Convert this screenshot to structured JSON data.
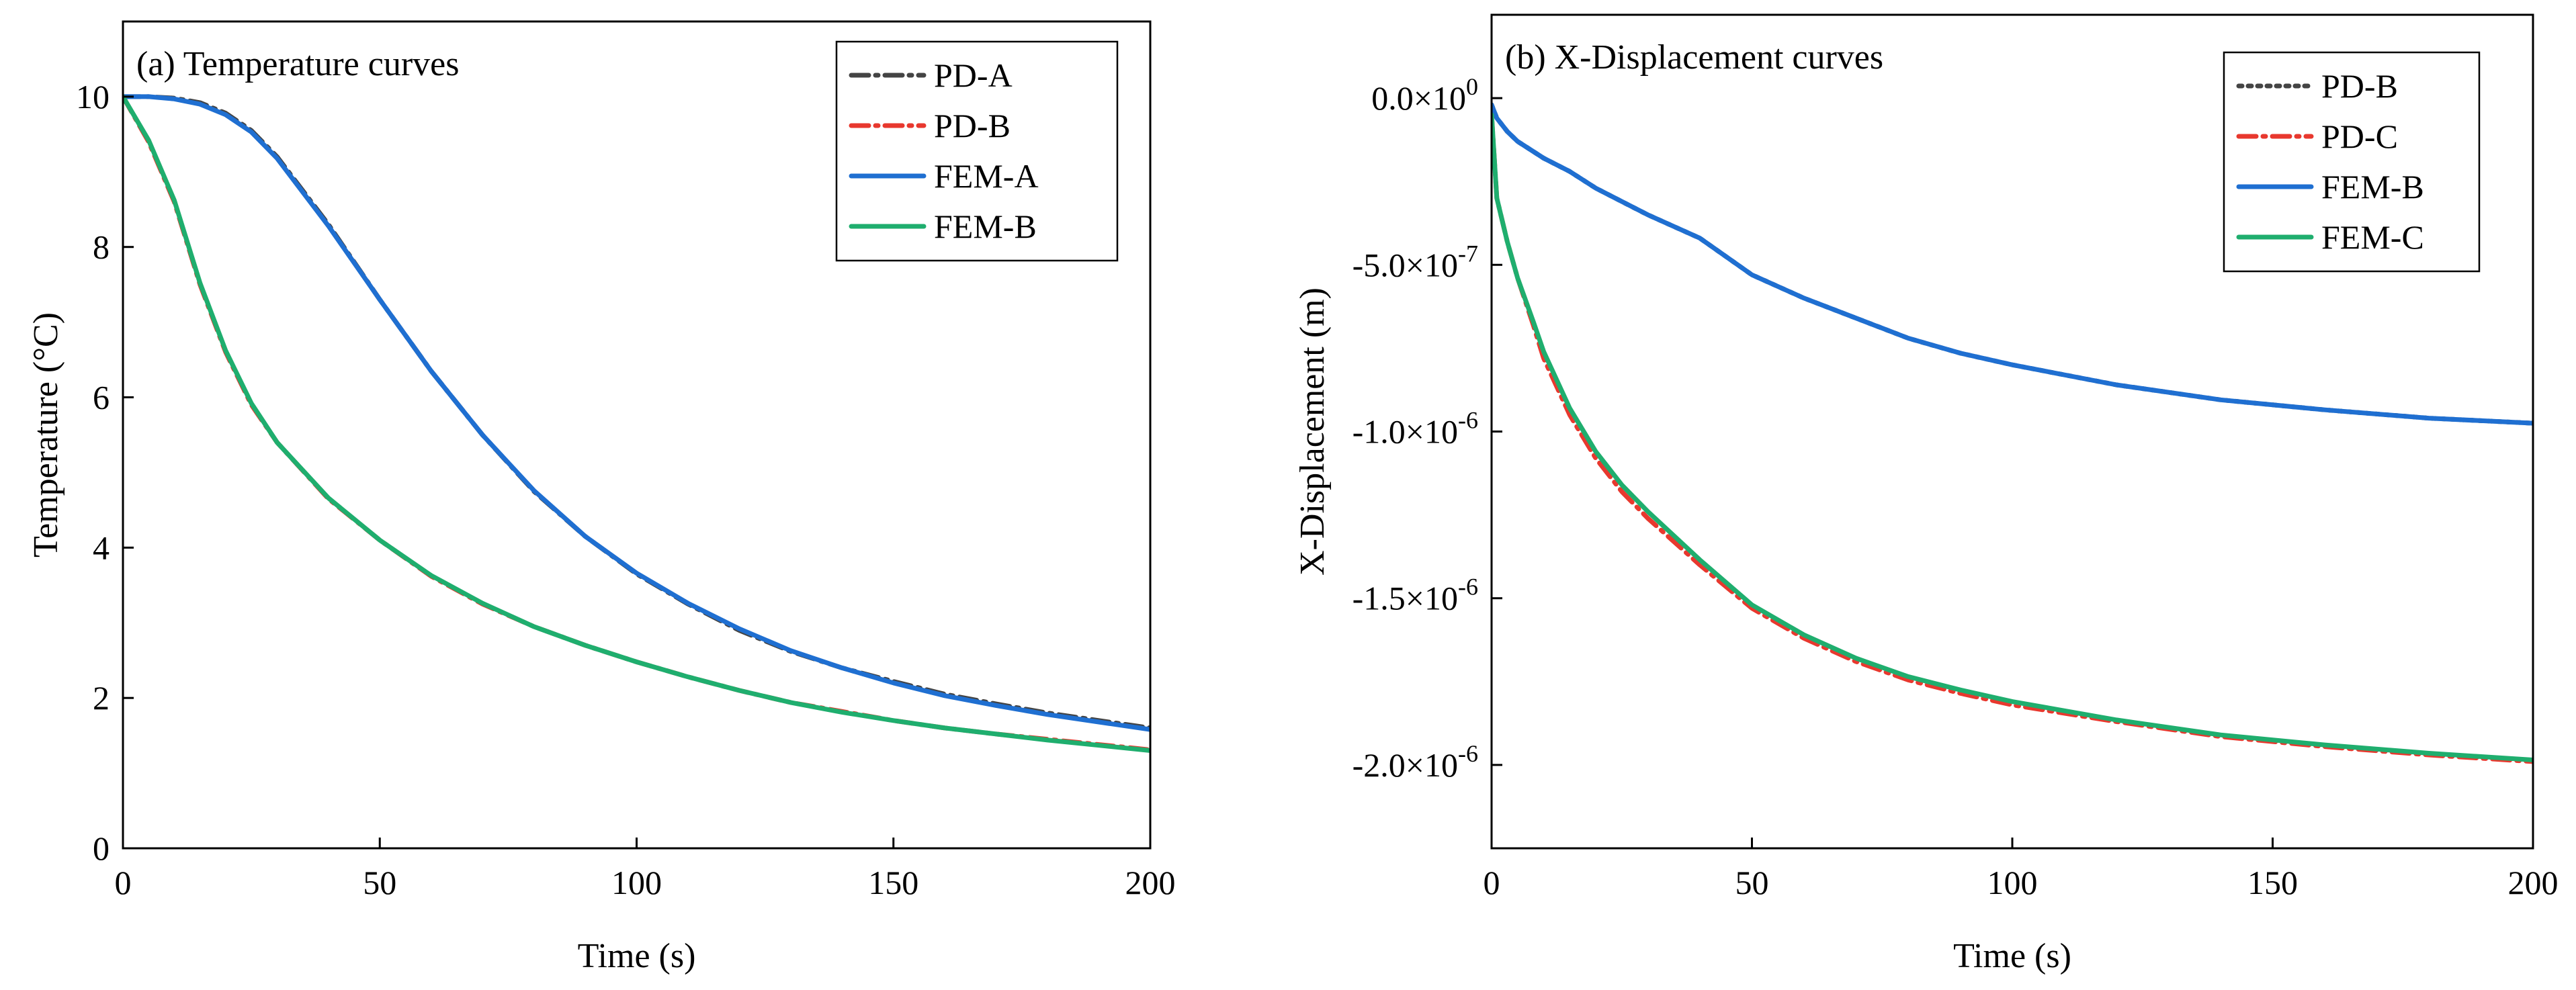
{
  "chart_data": [
    {
      "type": "line",
      "panel_title": "(a) Temperature curves",
      "xlabel": "Time (s)",
      "ylabel": "Temperature (°C)",
      "xlim": [
        0,
        200
      ],
      "ylim": [
        0,
        11
      ],
      "xticks": [
        0,
        50,
        100,
        150,
        200
      ],
      "xtick_labels": [
        "0",
        "50",
        "100",
        "150",
        "200"
      ],
      "yticks": [
        0,
        2,
        4,
        6,
        8,
        10
      ],
      "ytick_labels": [
        "0",
        "2",
        "4",
        "6",
        "8",
        "10"
      ],
      "grid": false,
      "legend_position": "top-right",
      "x": [
        0,
        5,
        10,
        15,
        20,
        25,
        30,
        40,
        50,
        60,
        70,
        80,
        90,
        100,
        110,
        120,
        130,
        140,
        150,
        160,
        170,
        180,
        190,
        200
      ],
      "series": [
        {
          "name": "PD-A",
          "color": "#444444",
          "dash": "dashdot",
          "values": [
            10,
            10,
            9.98,
            9.92,
            9.78,
            9.55,
            9.2,
            8.3,
            7.3,
            6.35,
            5.5,
            4.75,
            4.15,
            3.65,
            3.25,
            2.9,
            2.62,
            2.4,
            2.22,
            2.05,
            1.92,
            1.8,
            1.7,
            1.6
          ]
        },
        {
          "name": "PD-B",
          "color": "#e8382e",
          "dash": "dashdot",
          "values": [
            10,
            9.4,
            8.6,
            7.5,
            6.6,
            5.9,
            5.4,
            4.65,
            4.1,
            3.62,
            3.25,
            2.95,
            2.7,
            2.48,
            2.28,
            2.1,
            1.94,
            1.82,
            1.7,
            1.6,
            1.52,
            1.45,
            1.38,
            1.31
          ]
        },
        {
          "name": "FEM-A",
          "color": "#1f6fd1",
          "dash": "solid",
          "values": [
            10,
            10,
            9.97,
            9.9,
            9.76,
            9.53,
            9.18,
            8.28,
            7.3,
            6.35,
            5.5,
            4.76,
            4.15,
            3.66,
            3.26,
            2.92,
            2.63,
            2.4,
            2.2,
            2.03,
            1.9,
            1.78,
            1.68,
            1.58
          ]
        },
        {
          "name": "FEM-B",
          "color": "#1fae6e",
          "dash": "solid",
          "values": [
            10,
            9.42,
            8.62,
            7.52,
            6.62,
            5.92,
            5.4,
            4.66,
            4.1,
            3.63,
            3.26,
            2.95,
            2.7,
            2.48,
            2.28,
            2.1,
            1.94,
            1.81,
            1.7,
            1.6,
            1.52,
            1.44,
            1.37,
            1.3
          ]
        }
      ]
    },
    {
      "type": "line",
      "panel_title": "(b) X-Displacement curves",
      "xlabel": "Time (s)",
      "ylabel": "X-Displacement (m)",
      "xlim": [
        0,
        200
      ],
      "ylim": [
        -2.25e-06,
        2.5e-07
      ],
      "xticks": [
        0,
        50,
        100,
        150,
        200
      ],
      "xtick_labels": [
        "0",
        "50",
        "100",
        "150",
        "200"
      ],
      "yticks": [
        0,
        -5e-07,
        -1e-06,
        -1.5e-06,
        -2e-06
      ],
      "ytick_labels": [
        {
          "mantissa": "0.0×10",
          "exp": "0"
        },
        {
          "mantissa": "-5.0×10",
          "exp": "-7"
        },
        {
          "mantissa": "-1.0×10",
          "exp": "-6"
        },
        {
          "mantissa": "-1.5×10",
          "exp": "-6"
        },
        {
          "mantissa": "-2.0×10",
          "exp": "-6"
        }
      ],
      "grid": false,
      "legend_position": "top-right",
      "x": [
        0,
        1,
        3,
        5,
        8,
        10,
        15,
        20,
        25,
        30,
        40,
        50,
        60,
        70,
        80,
        90,
        100,
        120,
        140,
        160,
        180,
        200
      ],
      "series": [
        {
          "name": "PD-B",
          "color": "#444444",
          "dash": "dot",
          "values": [
            -2e-08,
            -6e-08,
            -1e-07,
            -1.3e-07,
            -1.6e-07,
            -1.8e-07,
            -2.2e-07,
            -2.7e-07,
            -3.1e-07,
            -3.5e-07,
            -4.2e-07,
            -5.3e-07,
            -6e-07,
            -6.6e-07,
            -7.2e-07,
            -7.65e-07,
            -8e-07,
            -8.6e-07,
            -9.05e-07,
            -9.35e-07,
            -9.6e-07,
            -9.75e-07
          ]
        },
        {
          "name": "PD-C",
          "color": "#e8382e",
          "dash": "dashdot",
          "values": [
            -5e-08,
            -3e-07,
            -4.3e-07,
            -5.4e-07,
            -6.8e-07,
            -7.8e-07,
            -9.5e-07,
            -1.08e-06,
            -1.18e-06,
            -1.26e-06,
            -1.4e-06,
            -1.53e-06,
            -1.62e-06,
            -1.69e-06,
            -1.745e-06,
            -1.785e-06,
            -1.82e-06,
            -1.87e-06,
            -1.915e-06,
            -1.945e-06,
            -1.97e-06,
            -1.99e-06
          ]
        },
        {
          "name": "FEM-B",
          "color": "#1f6fd1",
          "dash": "solid",
          "values": [
            -2e-08,
            -6e-08,
            -1e-07,
            -1.3e-07,
            -1.6e-07,
            -1.8e-07,
            -2.2e-07,
            -2.7e-07,
            -3.1e-07,
            -3.5e-07,
            -4.2e-07,
            -5.3e-07,
            -6e-07,
            -6.6e-07,
            -7.2e-07,
            -7.65e-07,
            -8e-07,
            -8.6e-07,
            -9.05e-07,
            -9.35e-07,
            -9.6e-07,
            -9.75e-07
          ]
        },
        {
          "name": "FEM-C",
          "color": "#1fae6e",
          "dash": "solid",
          "values": [
            -5e-08,
            -3e-07,
            -4.3e-07,
            -5.4e-07,
            -6.7e-07,
            -7.6e-07,
            -9.3e-07,
            -1.06e-06,
            -1.16e-06,
            -1.24e-06,
            -1.385e-06,
            -1.52e-06,
            -1.61e-06,
            -1.68e-06,
            -1.735e-06,
            -1.775e-06,
            -1.81e-06,
            -1.865e-06,
            -1.91e-06,
            -1.94e-06,
            -1.965e-06,
            -1.985e-06
          ]
        }
      ]
    }
  ]
}
